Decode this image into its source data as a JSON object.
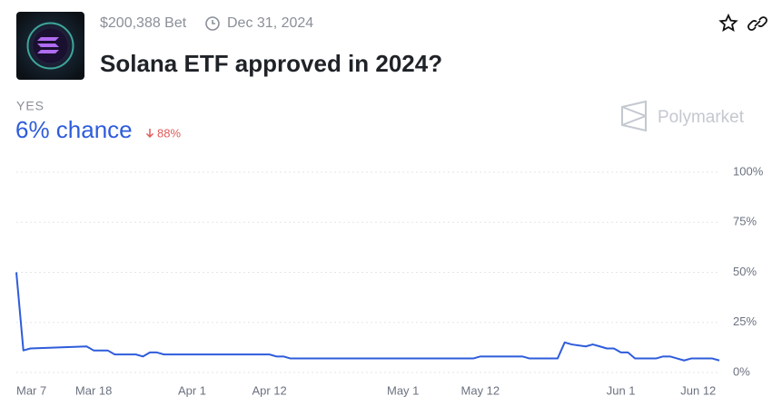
{
  "header": {
    "volume": "$200,388 Bet",
    "end_date": "Dec 31, 2024",
    "title": "Solana ETF approved in 2024?",
    "outcome": "YES",
    "chance": "6% chance",
    "change": "88%",
    "brand": "Polymarket"
  },
  "chart_data": {
    "type": "line",
    "x": [
      "Mar 7",
      "Mar 8",
      "Mar 9",
      "Mar 17",
      "Mar 18",
      "Mar 20",
      "Mar 21",
      "Mar 24",
      "Mar 25",
      "Mar 26",
      "Mar 27",
      "Mar 28",
      "Apr 12",
      "Apr 13",
      "Apr 14",
      "Apr 15",
      "May 11",
      "May 12",
      "May 18",
      "May 19",
      "May 23",
      "May 24",
      "May 25",
      "May 27",
      "May 28",
      "May 29",
      "May 30",
      "May 31",
      "Jun 1",
      "Jun 2",
      "Jun 3",
      "Jun 6",
      "Jun 7",
      "Jun 8",
      "Jun 9",
      "Jun 10",
      "Jun 11",
      "Jun 14",
      "Jun 15"
    ],
    "series": [
      {
        "name": "YES",
        "color": "#2e5cdb",
        "values": [
          50,
          11,
          12,
          13,
          11,
          11,
          9,
          9,
          8,
          10,
          10,
          9,
          9,
          8,
          8,
          7,
          7,
          8,
          8,
          7,
          7,
          15,
          14,
          13,
          14,
          13,
          12,
          12,
          10,
          10,
          7,
          7,
          8,
          8,
          7,
          6,
          7,
          7,
          6
        ]
      }
    ],
    "xlim": [
      "Mar 7",
      "Jun 15"
    ],
    "xticks": [
      "Mar 7",
      "Mar 18",
      "Apr 1",
      "Apr 12",
      "May 1",
      "May 12",
      "Jun 1",
      "Jun 12"
    ],
    "ylim": [
      0,
      100
    ],
    "yticks": [
      {
        "value": 0,
        "label": "0%"
      },
      {
        "value": 25,
        "label": "25%"
      },
      {
        "value": 50,
        "label": "50%"
      },
      {
        "value": 75,
        "label": "75%"
      },
      {
        "value": 100,
        "label": "100%"
      }
    ],
    "grid": true
  }
}
